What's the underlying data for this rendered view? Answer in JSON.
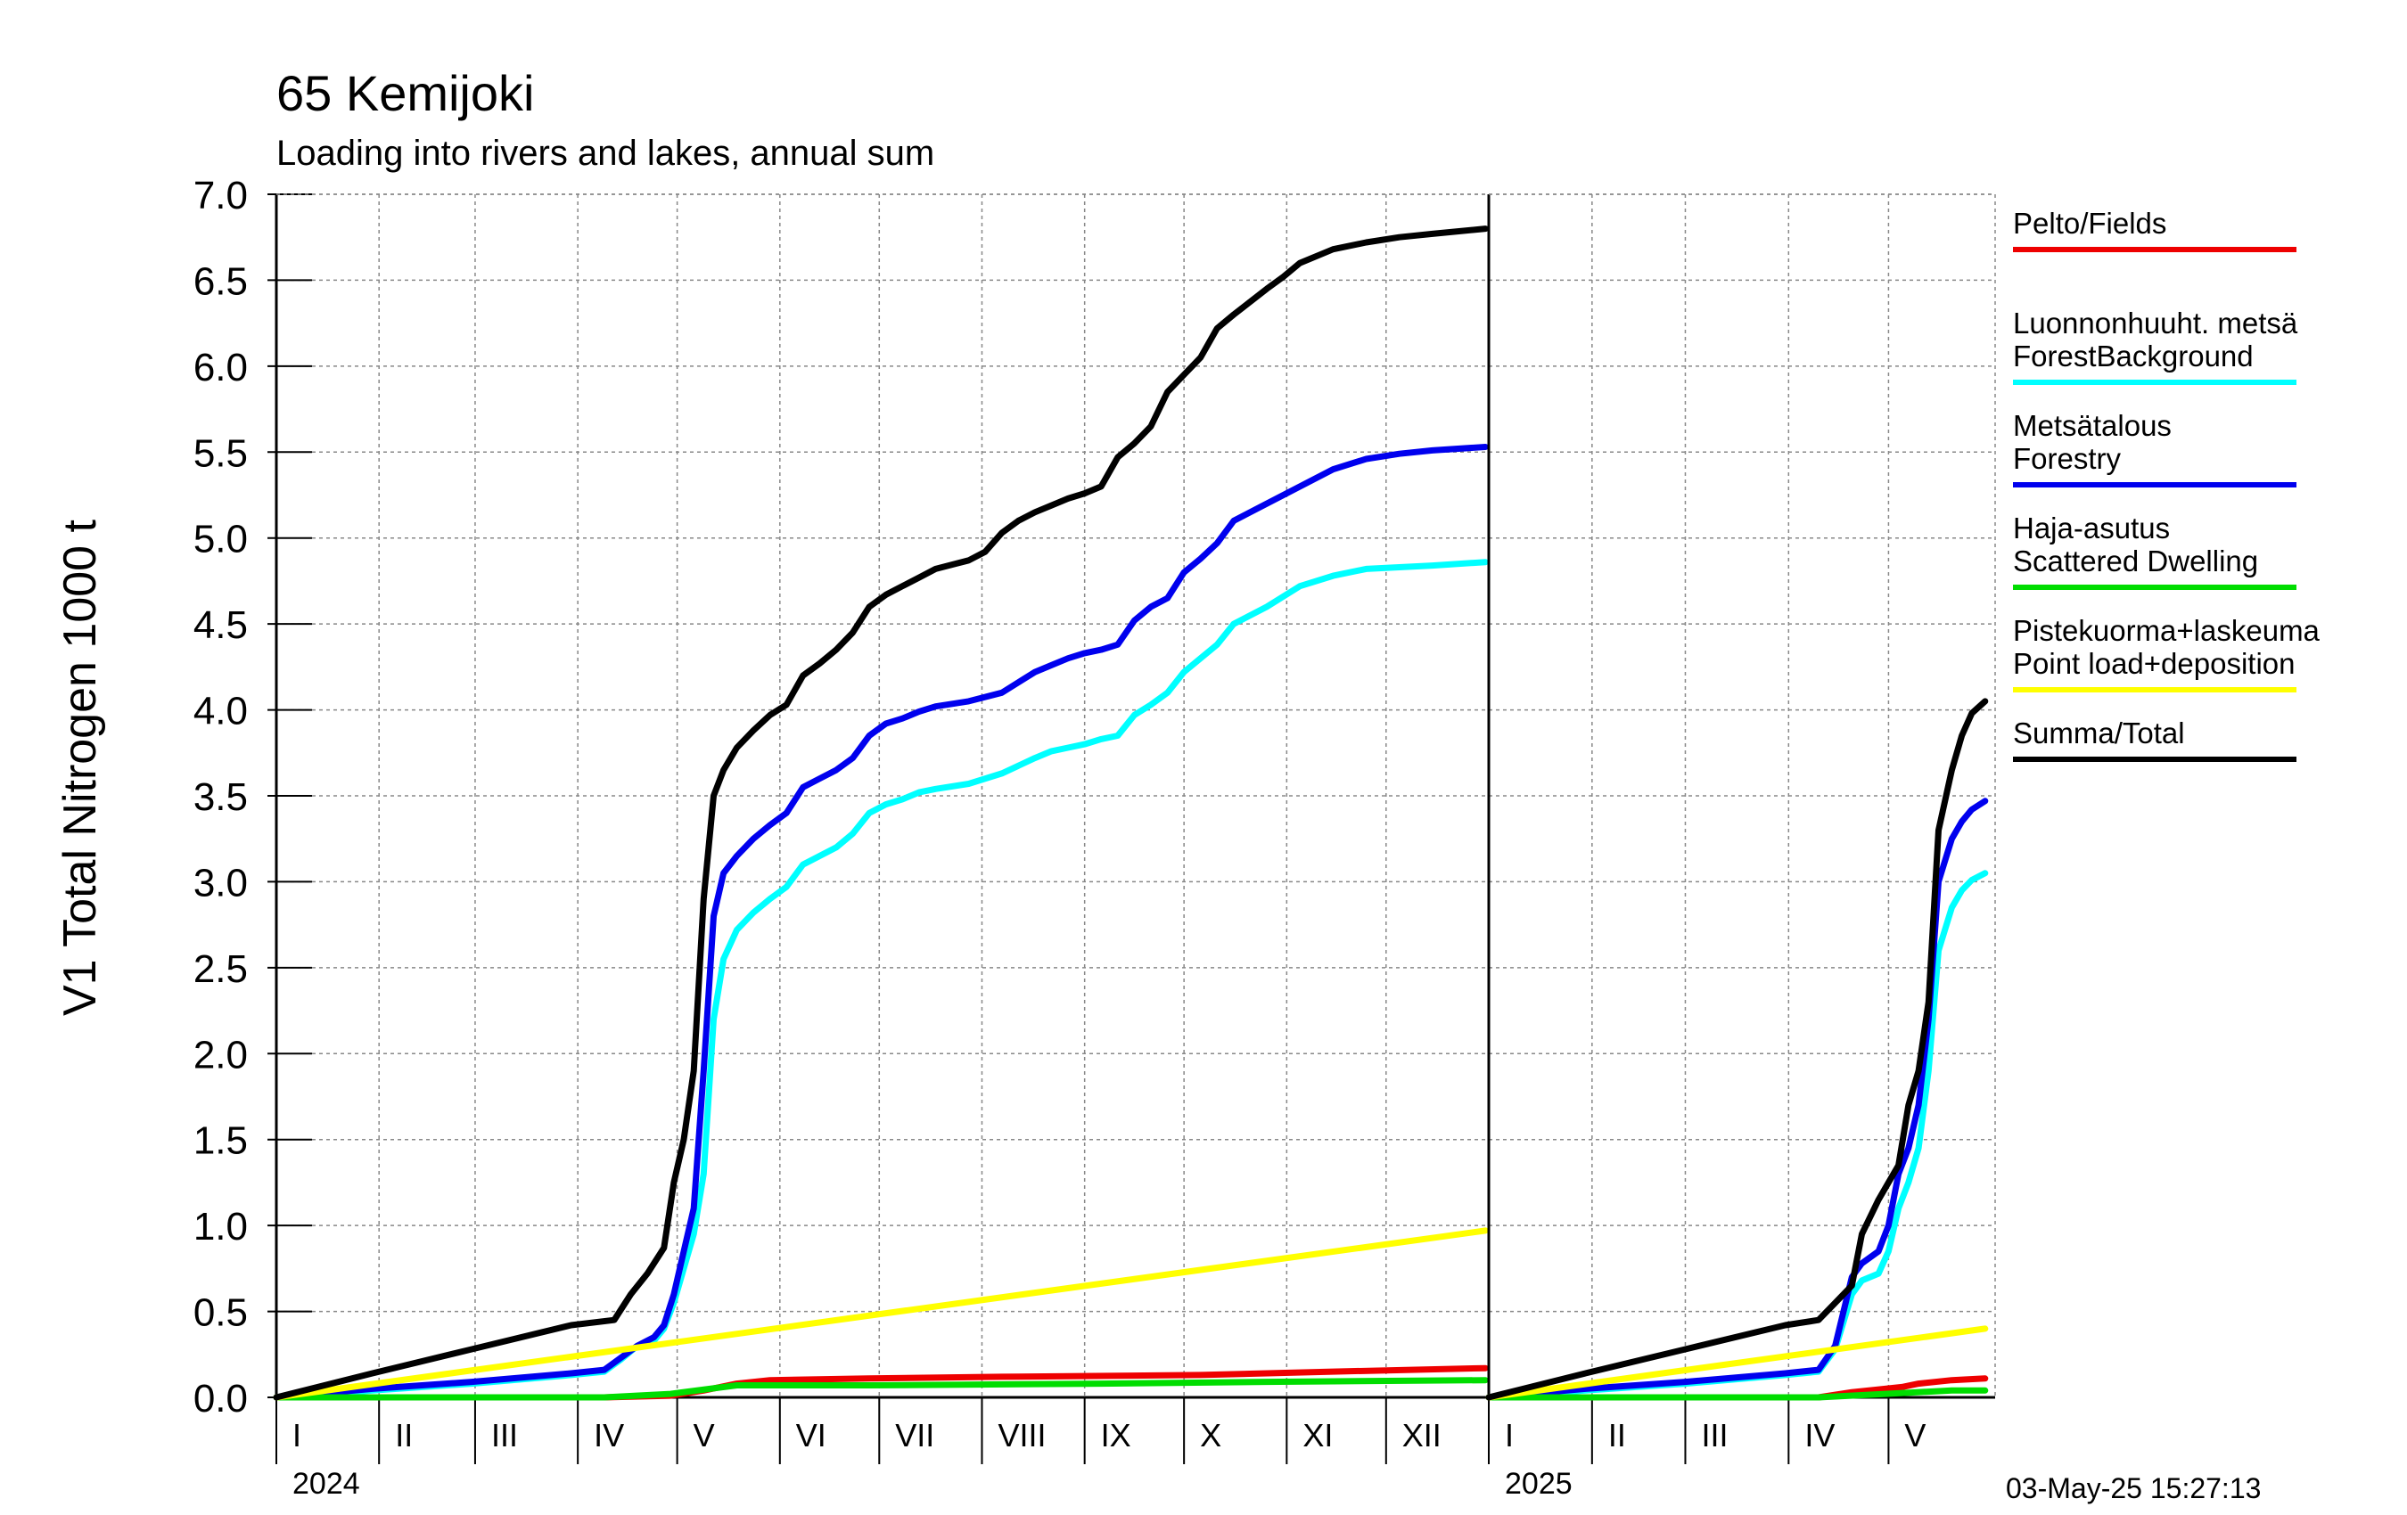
{
  "chart_data": {
    "type": "line",
    "title": "65 Kemijoki",
    "subtitle": "Loading into rivers and lakes, annual sum",
    "ylabel": "V1 Total Nitrogen 1000 t",
    "ylim": [
      0.0,
      7.0
    ],
    "y_ticks": [
      "0.0",
      "0.5",
      "1.0",
      "1.5",
      "2.0",
      "2.5",
      "3.0",
      "3.5",
      "4.0",
      "4.5",
      "5.0",
      "5.5",
      "6.0",
      "6.5",
      "7.0"
    ],
    "grid": true,
    "legend_position": "right",
    "panels": [
      {
        "year": "2024",
        "months": [
          "I",
          "II",
          "III",
          "IV",
          "V",
          "VI",
          "VII",
          "VIII",
          "IX",
          "X",
          "XI",
          "XII"
        ],
        "series": [
          {
            "name": "Pelto/Fields",
            "color": "#ee0000",
            "x": [
              1,
              60,
              100,
              120,
              130,
              140,
              150,
              180,
              220,
              280,
              320,
              366
            ],
            "y": [
              0.0,
              0.0,
              0.0,
              0.01,
              0.04,
              0.08,
              0.1,
              0.11,
              0.12,
              0.13,
              0.15,
              0.17
            ]
          },
          {
            "name": "Luonnonhuuht. metsä ForestBackground",
            "color": "#00ffff",
            "x": [
              1,
              30,
              60,
              90,
              100,
              105,
              110,
              115,
              118,
              121,
              124,
              127,
              130,
              133,
              136,
              140,
              145,
              150,
              155,
              160,
              165,
              170,
              175,
              180,
              185,
              190,
              195,
              200,
              210,
              220,
              230,
              235,
              240,
              245,
              250,
              255,
              260,
              265,
              270,
              275,
              280,
              285,
              290,
              300,
              310,
              320,
              330,
              340,
              350,
              366
            ],
            "y": [
              0.0,
              0.04,
              0.08,
              0.13,
              0.15,
              0.22,
              0.3,
              0.33,
              0.4,
              0.55,
              0.75,
              0.95,
              1.3,
              2.2,
              2.55,
              2.72,
              2.82,
              2.9,
              2.97,
              3.1,
              3.15,
              3.2,
              3.28,
              3.4,
              3.45,
              3.48,
              3.52,
              3.54,
              3.57,
              3.63,
              3.72,
              3.76,
              3.78,
              3.8,
              3.83,
              3.85,
              3.97,
              4.03,
              4.1,
              4.22,
              4.3,
              4.38,
              4.5,
              4.6,
              4.72,
              4.78,
              4.82,
              4.83,
              4.84,
              4.86
            ]
          },
          {
            "name": "Metsätalous Forestry",
            "color": "#0000ee",
            "x": [
              1,
              30,
              60,
              90,
              100,
              105,
              110,
              115,
              118,
              121,
              124,
              127,
              130,
              133,
              136,
              140,
              145,
              150,
              155,
              160,
              165,
              170,
              175,
              180,
              185,
              190,
              195,
              200,
              210,
              220,
              230,
              235,
              240,
              245,
              250,
              255,
              260,
              265,
              270,
              275,
              280,
              285,
              290,
              300,
              310,
              320,
              330,
              340,
              350,
              366
            ],
            "y": [
              0.0,
              0.05,
              0.09,
              0.14,
              0.16,
              0.23,
              0.3,
              0.35,
              0.42,
              0.6,
              0.85,
              1.1,
              1.9,
              2.8,
              3.05,
              3.15,
              3.25,
              3.33,
              3.4,
              3.55,
              3.6,
              3.65,
              3.72,
              3.85,
              3.92,
              3.95,
              3.99,
              4.02,
              4.05,
              4.1,
              4.22,
              4.26,
              4.3,
              4.33,
              4.35,
              4.38,
              4.52,
              4.6,
              4.65,
              4.8,
              4.88,
              4.97,
              5.1,
              5.2,
              5.3,
              5.4,
              5.46,
              5.49,
              5.51,
              5.53
            ]
          },
          {
            "name": "Haja-asutus Scattered Dwelling",
            "color": "#00dd00",
            "x": [
              1,
              60,
              100,
              120,
              140,
              180,
              250,
              300,
              366
            ],
            "y": [
              0.0,
              0.0,
              0.0,
              0.02,
              0.07,
              0.07,
              0.08,
              0.09,
              0.1
            ]
          },
          {
            "name": "Pistekuorma+laskeuma Point load+deposition",
            "color": "#ffff00",
            "x": [
              1,
              366
            ],
            "y": [
              0.0,
              0.97
            ]
          },
          {
            "name": "Summa/Total",
            "color": "#000000",
            "x": [
              1,
              30,
              60,
              90,
              103,
              108,
              113,
              118,
              121,
              124,
              127,
              130,
              133,
              136,
              140,
              145,
              150,
              155,
              160,
              165,
              170,
              175,
              180,
              185,
              190,
              195,
              200,
              210,
              215,
              220,
              225,
              230,
              235,
              240,
              245,
              250,
              255,
              260,
              265,
              270,
              275,
              280,
              285,
              290,
              300,
              305,
              310,
              320,
              330,
              340,
              350,
              366
            ],
            "y": [
              0.0,
              0.14,
              0.28,
              0.42,
              0.45,
              0.6,
              0.72,
              0.87,
              1.25,
              1.5,
              1.9,
              2.9,
              3.5,
              3.65,
              3.78,
              3.88,
              3.97,
              4.03,
              4.2,
              4.27,
              4.35,
              4.45,
              4.6,
              4.67,
              4.72,
              4.77,
              4.82,
              4.87,
              4.92,
              5.03,
              5.1,
              5.15,
              5.19,
              5.23,
              5.26,
              5.3,
              5.47,
              5.55,
              5.65,
              5.85,
              5.95,
              6.05,
              6.22,
              6.3,
              6.45,
              6.52,
              6.6,
              6.68,
              6.72,
              6.75,
              6.77,
              6.8
            ]
          }
        ]
      },
      {
        "year": "2025",
        "months": [
          "I",
          "II",
          "III",
          "IV",
          "V"
        ],
        "series": [
          {
            "name": "Pelto/Fields",
            "color": "#ee0000",
            "x": [
              1,
              60,
              100,
              110,
              120,
              125,
              130,
              140,
              150
            ],
            "y": [
              0.0,
              0.0,
              0.0,
              0.03,
              0.05,
              0.06,
              0.08,
              0.1,
              0.11
            ]
          },
          {
            "name": "Luonnonhuuht. metsä ForestBackground",
            "color": "#00ffff",
            "x": [
              1,
              30,
              60,
              90,
              100,
              105,
              110,
              113,
              118,
              121,
              124,
              127,
              130,
              133,
              136,
              140,
              143,
              146,
              150
            ],
            "y": [
              0.0,
              0.04,
              0.08,
              0.13,
              0.15,
              0.28,
              0.6,
              0.68,
              0.72,
              0.85,
              1.1,
              1.25,
              1.45,
              1.9,
              2.6,
              2.85,
              2.95,
              3.01,
              3.05
            ]
          },
          {
            "name": "Metsätalous Forestry",
            "color": "#0000ee",
            "x": [
              1,
              30,
              60,
              90,
              100,
              105,
              110,
              113,
              118,
              121,
              124,
              127,
              130,
              133,
              136,
              140,
              143,
              146,
              150
            ],
            "y": [
              0.0,
              0.05,
              0.09,
              0.14,
              0.16,
              0.3,
              0.7,
              0.78,
              0.85,
              1.0,
              1.3,
              1.45,
              1.7,
              2.2,
              3.0,
              3.25,
              3.35,
              3.42,
              3.47
            ]
          },
          {
            "name": "Haja-asutus Scattered Dwelling",
            "color": "#00dd00",
            "x": [
              1,
              100,
              120,
              140,
              150
            ],
            "y": [
              0.0,
              0.0,
              0.02,
              0.04,
              0.04
            ]
          },
          {
            "name": "Pistekuorma+laskeuma Point load+deposition",
            "color": "#ffff00",
            "x": [
              1,
              150
            ],
            "y": [
              0.0,
              0.4
            ]
          },
          {
            "name": "Summa/Total",
            "color": "#000000",
            "x": [
              1,
              30,
              60,
              90,
              100,
              105,
              110,
              113,
              118,
              121,
              124,
              127,
              130,
              133,
              136,
              140,
              143,
              146,
              150
            ],
            "y": [
              0.0,
              0.14,
              0.28,
              0.42,
              0.45,
              0.55,
              0.65,
              0.95,
              1.15,
              1.25,
              1.35,
              1.7,
              1.9,
              2.3,
              3.3,
              3.65,
              3.85,
              3.98,
              4.05
            ]
          }
        ]
      }
    ],
    "timestamp": "03-May-25 15:27:13"
  },
  "legend": [
    {
      "lines": [
        "Pelto/Fields"
      ],
      "color": "#ee0000"
    },
    {
      "lines": [
        "Luonnonhuuht. metsä",
        "ForestBackground"
      ],
      "color": "#00ffff"
    },
    {
      "lines": [
        "Metsätalous",
        "Forestry"
      ],
      "color": "#0000ee"
    },
    {
      "lines": [
        "Haja-asutus",
        "Scattered Dwelling"
      ],
      "color": "#00dd00"
    },
    {
      "lines": [
        "Pistekuorma+laskeuma",
        "Point load+deposition"
      ],
      "color": "#ffff00"
    },
    {
      "lines": [
        "Summa/Total"
      ],
      "color": "#000000"
    }
  ]
}
